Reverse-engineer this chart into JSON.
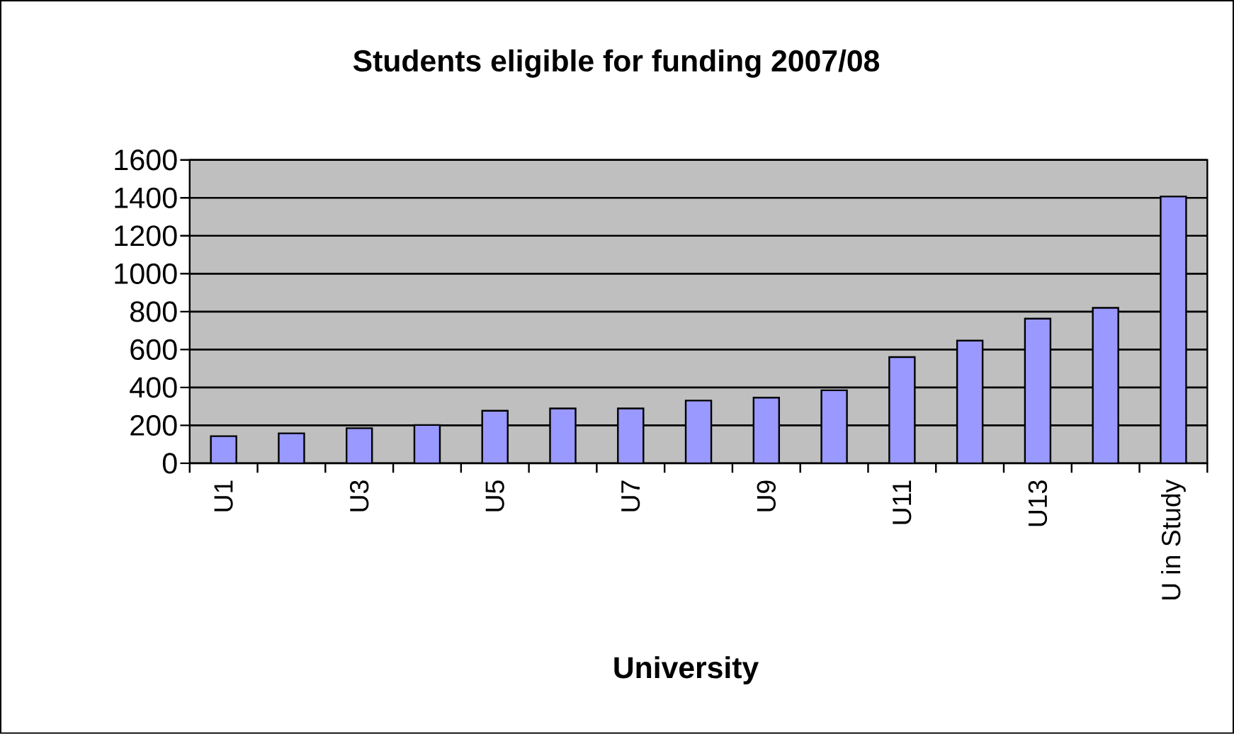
{
  "chart_data": {
    "type": "bar",
    "title": "Students eligible for funding 2007/08",
    "xlabel": "University",
    "categories": [
      "U1",
      null,
      "U3",
      null,
      "U5",
      null,
      "U7",
      null,
      "U9",
      null,
      "U11",
      null,
      "U13",
      null,
      "U in Study"
    ],
    "values": [
      143,
      158,
      185,
      202,
      277,
      289,
      289,
      331,
      346,
      385,
      560,
      647,
      763,
      820,
      1407
    ],
    "color": "#9999ff",
    "ylim": [
      0,
      1600
    ],
    "yticks": [
      0,
      200,
      400,
      600,
      800,
      1000,
      1200,
      1400,
      1600
    ],
    "grid": "y"
  }
}
